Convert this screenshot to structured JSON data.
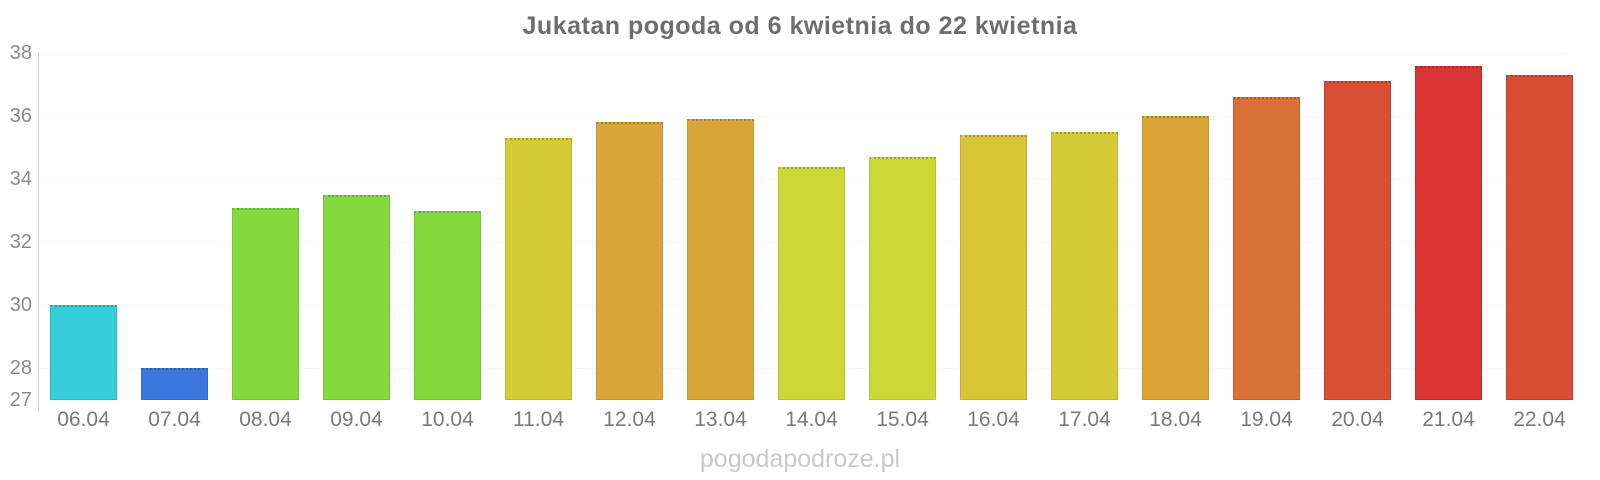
{
  "title": "Jukatan pogoda od 6 kwietnia do 22 kwietnia",
  "watermark": "pogodapodroze.pl",
  "colors": {
    "background": "#ffffff",
    "title_text": "#6e6e6e",
    "axis_line": "#cccccc",
    "grid_line": "#ececec",
    "tick_label": "#8b8b8b",
    "x_label": "#7a7a7a",
    "watermark_text": "#c9c9c9"
  },
  "chart_data": {
    "type": "bar",
    "title": "Jukatan pogoda od 6 kwietnia do 22 kwietnia",
    "xlabel": "",
    "ylabel": "",
    "categories": [
      "06.04",
      "07.04",
      "08.04",
      "09.04",
      "10.04",
      "11.04",
      "12.04",
      "13.04",
      "14.04",
      "15.04",
      "16.04",
      "17.04",
      "18.04",
      "19.04",
      "20.04",
      "21.04",
      "22.04"
    ],
    "values": [
      30.0,
      28.0,
      33.1,
      33.5,
      33.0,
      35.3,
      35.8,
      35.9,
      34.4,
      34.7,
      35.4,
      35.5,
      36.0,
      36.6,
      37.1,
      37.6,
      37.3
    ],
    "bar_colors": [
      "#38cdda",
      "#3a78dd",
      "#84da3c",
      "#84da3c",
      "#84da3c",
      "#d4cb37",
      "#d9a63a",
      "#d9a63a",
      "#ccd835",
      "#ccd835",
      "#d8c636",
      "#d5ca38",
      "#daa637",
      "#d97036",
      "#d94f36",
      "#d83434",
      "#d94c36"
    ],
    "ylim": [
      27,
      38
    ],
    "yticks": [
      38,
      36,
      34,
      32,
      30,
      28,
      27
    ],
    "grid": "horizontal-dotted",
    "legend": "none"
  }
}
